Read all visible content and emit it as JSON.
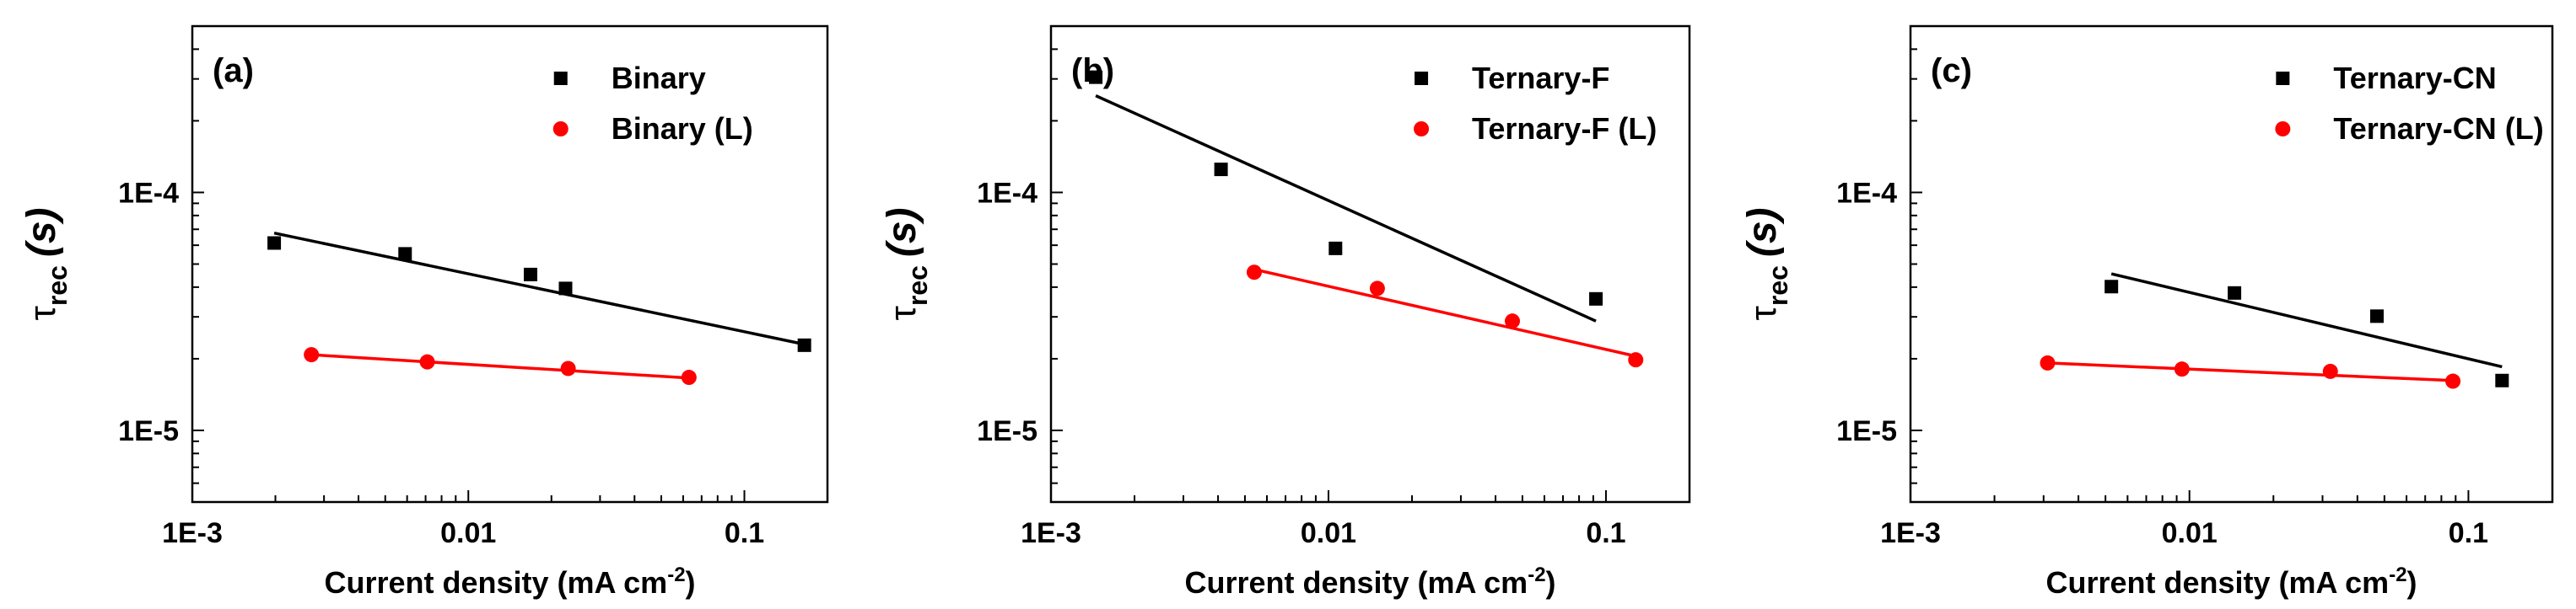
{
  "chart_data": [
    {
      "type": "scatter",
      "panel_label": "(a)",
      "xscale": "log",
      "yscale": "log",
      "xlim": [
        0.001,
        0.2
      ],
      "ylim": [
        5e-06,
        0.0005
      ],
      "xticks": [
        0.001,
        0.01,
        0.1
      ],
      "xtick_labels": [
        "1E-3",
        "0.01",
        "0.1"
      ],
      "yticks": [
        1e-05,
        0.0001
      ],
      "ytick_labels": [
        "1E-5",
        "1E-4"
      ],
      "xlabel": "Current density (mA cm",
      "xlabel_sup": "-2",
      "xlabel_end": ")",
      "ylabel_tau": "τ",
      "ylabel_sub": "rec",
      "ylabel_unit": "(s)",
      "legend_position": "top-right",
      "series": [
        {
          "name": "Binary",
          "color": "#000000",
          "marker": "square",
          "x": [
            0.00198,
            0.0059,
            0.0168,
            0.0225,
            0.165
          ],
          "y": [
            6.13e-05,
            5.52e-05,
            4.52e-05,
            3.95e-05,
            2.28e-05
          ],
          "fit": {
            "x": [
              0.00198,
              0.165
            ],
            "y": [
              6.75e-05,
              2.3e-05
            ]
          }
        },
        {
          "name": "Binary (L)",
          "color": "#ff0000",
          "marker": "circle",
          "x": [
            0.0027,
            0.0071,
            0.023,
            0.063
          ],
          "y": [
            2.08e-05,
            1.94e-05,
            1.82e-05,
            1.67e-05
          ],
          "fit": {
            "x": [
              0.0027,
              0.063
            ],
            "y": [
              2.08e-05,
              1.66e-05
            ]
          }
        }
      ]
    },
    {
      "type": "scatter",
      "panel_label": "(b)",
      "xscale": "log",
      "yscale": "log",
      "xlim": [
        0.001,
        0.2
      ],
      "ylim": [
        5e-06,
        0.0005
      ],
      "xticks": [
        0.001,
        0.01,
        0.1
      ],
      "xtick_labels": [
        "1E-3",
        "0.01",
        "0.1"
      ],
      "yticks": [
        1e-05,
        0.0001
      ],
      "ytick_labels": [
        "1E-5",
        "1E-4"
      ],
      "xlabel": "Current density (mA cm",
      "xlabel_sup": "-2",
      "xlabel_end": ")",
      "ylabel_tau": "τ",
      "ylabel_sub": "rec",
      "ylabel_unit": "(s)",
      "legend_position": "top-right",
      "series": [
        {
          "name": "Ternary-F",
          "color": "#000000",
          "marker": "square",
          "x": [
            0.00145,
            0.0041,
            0.0106,
            0.092
          ],
          "y": [
            0.000305,
            0.000125,
            5.82e-05,
            3.57e-05
          ],
          "fit": {
            "x": [
              0.00145,
              0.092
            ],
            "y": [
              0.000255,
              2.88e-05
            ]
          }
        },
        {
          "name": "Ternary-F (L)",
          "color": "#ff0000",
          "marker": "circle",
          "x": [
            0.0054,
            0.015,
            0.046,
            0.128
          ],
          "y": [
            4.62e-05,
            3.95e-05,
            2.88e-05,
            1.98e-05
          ],
          "fit": {
            "x": [
              0.0054,
              0.128
            ],
            "y": [
              4.75e-05,
              2.05e-05
            ]
          }
        }
      ]
    },
    {
      "type": "scatter",
      "panel_label": "(c)",
      "xscale": "log",
      "yscale": "log",
      "xlim": [
        0.001,
        0.2
      ],
      "ylim": [
        5e-06,
        0.0005
      ],
      "xticks": [
        0.001,
        0.01,
        0.1
      ],
      "xtick_labels": [
        "1E-3",
        "0.01",
        "0.1"
      ],
      "yticks": [
        1e-05,
        0.0001
      ],
      "ytick_labels": [
        "1E-5",
        "1E-4"
      ],
      "xlabel": "Current density (mA cm",
      "xlabel_sup": "-2",
      "xlabel_end": ")",
      "ylabel_tau": "τ",
      "ylabel_sub": "rec",
      "ylabel_unit": "(s)",
      "legend_position": "top-right",
      "series": [
        {
          "name": "Ternary-CN",
          "color": "#000000",
          "marker": "square",
          "x": [
            0.00525,
            0.0145,
            0.047,
            0.132
          ],
          "y": [
            4.02e-05,
            3.78e-05,
            3.02e-05,
            1.62e-05
          ],
          "fit": {
            "x": [
              0.00525,
              0.132
            ],
            "y": [
              4.55e-05,
              1.85e-05
            ]
          }
        },
        {
          "name": "Ternary-CN (L)",
          "color": "#ff0000",
          "marker": "circle",
          "x": [
            0.0031,
            0.0094,
            0.032,
            0.088
          ],
          "y": [
            1.92e-05,
            1.81e-05,
            1.77e-05,
            1.61e-05
          ],
          "fit": {
            "x": [
              0.0031,
              0.088
            ],
            "y": [
              1.92e-05,
              1.62e-05
            ]
          }
        }
      ]
    }
  ]
}
